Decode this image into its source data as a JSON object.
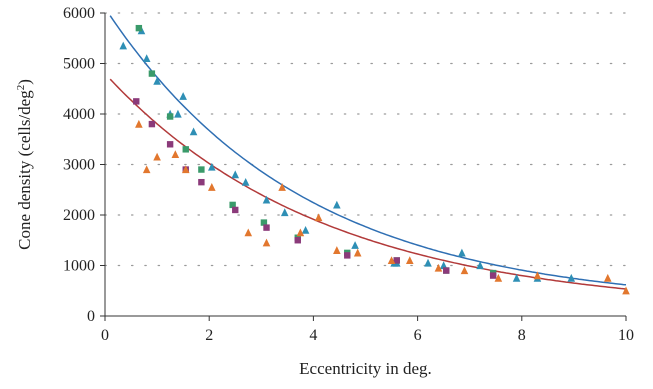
{
  "chart_data": {
    "type": "scatter",
    "title": "",
    "xlabel": "Eccentricity in deg.",
    "ylabel_main": "Cone density (cells/deg",
    "ylabel_sup": "2",
    "ylabel_close": ")",
    "xlim": [
      0,
      10
    ],
    "ylim": [
      0,
      6000
    ],
    "x_ticks": [
      0,
      2,
      4,
      6,
      8,
      10
    ],
    "y_ticks": [
      0,
      1000,
      2000,
      3000,
      4000,
      5000,
      6000
    ],
    "grid": "dotted horizontal",
    "legend": "none",
    "series": [
      {
        "marker": "triangle",
        "color": "#2e8fb5",
        "points": [
          [
            0.35,
            5350
          ],
          [
            0.7,
            5650
          ],
          [
            0.8,
            5100
          ],
          [
            1.0,
            4650
          ],
          [
            1.25,
            4000
          ],
          [
            1.4,
            4000
          ],
          [
            1.5,
            4350
          ],
          [
            1.7,
            3650
          ],
          [
            2.05,
            2950
          ],
          [
            2.5,
            2800
          ],
          [
            2.7,
            2650
          ],
          [
            3.1,
            2300
          ],
          [
            3.45,
            2050
          ],
          [
            3.85,
            1700
          ],
          [
            4.45,
            2200
          ],
          [
            4.8,
            1400
          ],
          [
            5.55,
            1050
          ],
          [
            5.6,
            1050
          ],
          [
            6.2,
            1050
          ],
          [
            6.5,
            1000
          ],
          [
            6.85,
            1250
          ],
          [
            7.2,
            1000
          ],
          [
            7.9,
            750
          ],
          [
            8.3,
            750
          ],
          [
            8.95,
            750
          ]
        ]
      },
      {
        "marker": "square",
        "color": "#3a9a6a",
        "points": [
          [
            0.65,
            5700
          ],
          [
            0.9,
            4800
          ],
          [
            1.25,
            3950
          ],
          [
            1.55,
            3300
          ],
          [
            1.85,
            2900
          ],
          [
            2.45,
            2200
          ],
          [
            3.05,
            1850
          ],
          [
            3.7,
            1550
          ],
          [
            4.65,
            1250
          ],
          [
            5.6,
            1100
          ],
          [
            6.55,
            900
          ],
          [
            7.45,
            850
          ]
        ]
      },
      {
        "marker": "square",
        "color": "#8b3a7a",
        "points": [
          [
            0.6,
            4250
          ],
          [
            0.9,
            3800
          ],
          [
            1.25,
            3400
          ],
          [
            1.55,
            2900
          ],
          [
            1.85,
            2650
          ],
          [
            2.5,
            2100
          ],
          [
            3.1,
            1750
          ],
          [
            3.7,
            1500
          ],
          [
            4.65,
            1200
          ],
          [
            5.6,
            1100
          ],
          [
            6.55,
            900
          ],
          [
            7.45,
            800
          ]
        ]
      },
      {
        "marker": "triangle",
        "color": "#e2772e",
        "points": [
          [
            0.65,
            3800
          ],
          [
            0.8,
            2900
          ],
          [
            1.0,
            3150
          ],
          [
            1.35,
            3200
          ],
          [
            1.55,
            2900
          ],
          [
            2.05,
            2550
          ],
          [
            2.75,
            1650
          ],
          [
            3.1,
            1450
          ],
          [
            3.4,
            2550
          ],
          [
            3.75,
            1650
          ],
          [
            4.1,
            1950
          ],
          [
            4.45,
            1300
          ],
          [
            4.85,
            1250
          ],
          [
            5.5,
            1100
          ],
          [
            5.85,
            1100
          ],
          [
            6.4,
            950
          ],
          [
            6.9,
            900
          ],
          [
            7.55,
            750
          ],
          [
            8.3,
            800
          ],
          [
            9.65,
            750
          ],
          [
            10.0,
            500
          ]
        ]
      }
    ],
    "fit_curves": [
      {
        "color": "#2f6fb3",
        "a": 5900,
        "k": 0.265,
        "c": 200,
        "x_start": 0.1
      },
      {
        "color": "#b23a3a",
        "a": 4700,
        "k": 0.238,
        "c": 100,
        "x_start": 0.1
      }
    ]
  }
}
